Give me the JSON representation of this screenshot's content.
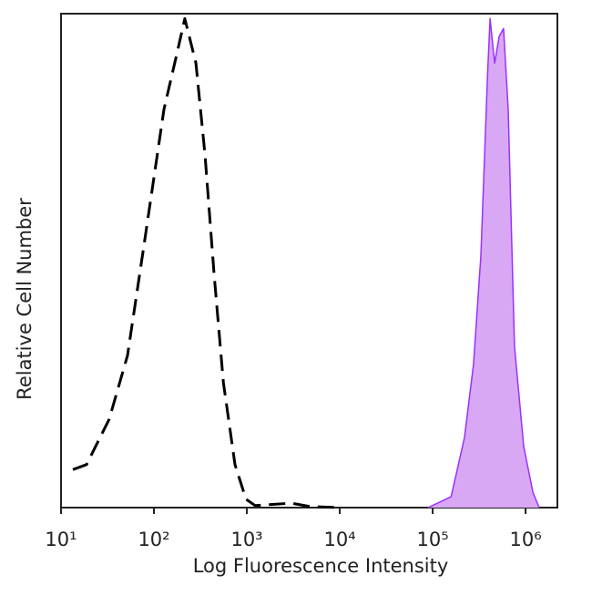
{
  "chart_data": {
    "type": "histogram-line",
    "xlabel": "Log Fluorescence Intensity",
    "ylabel": "Relative Cell Number",
    "xscale": "log",
    "xlim": [
      10,
      2200000
    ],
    "ylim": [
      0,
      100
    ],
    "xticks": [
      {
        "value": 10,
        "label": "10¹"
      },
      {
        "value": 100,
        "label": "10²"
      },
      {
        "value": 1000,
        "label": "10³"
      },
      {
        "value": 10000,
        "label": "10⁴"
      },
      {
        "value": 100000,
        "label": "10⁵"
      },
      {
        "value": 1000000,
        "label": "10⁶"
      }
    ],
    "series": [
      {
        "color": "#000000",
        "dashed": true,
        "filled": false,
        "x": [
          13.4,
          18.8,
          33,
          52,
          78,
          128,
          180,
          215,
          283,
          355,
          443,
          560,
          745,
          980,
          1230,
          3030,
          4800,
          10000
        ],
        "values": [
          7.7,
          8.7,
          17.9,
          30.8,
          53,
          80.6,
          92.6,
          99,
          90,
          71.4,
          47.4,
          25.3,
          8.7,
          1.7,
          0.4,
          0.9,
          0.2,
          0
        ]
      },
      {
        "color": "#9b30ff",
        "fill": "#d9a8f5",
        "dashed": false,
        "filled": true,
        "x": [
          89000,
          158000,
          220000,
          275000,
          330000,
          390000,
          415000,
          465000,
          520000,
          580000,
          650000,
          760000,
          955000,
          1200000,
          1400000
        ],
        "values": [
          0,
          2.2,
          14.2,
          29,
          51,
          88,
          99,
          90,
          95.4,
          97,
          80.6,
          32.7,
          12.4,
          3.1,
          0
        ]
      }
    ]
  }
}
